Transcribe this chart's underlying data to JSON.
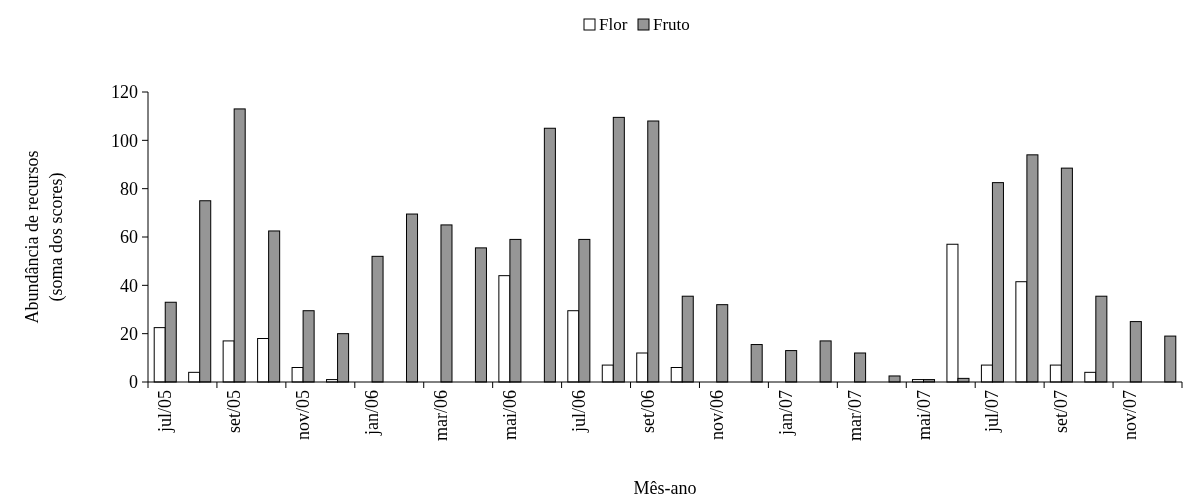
{
  "chart_data": {
    "type": "bar",
    "xlabel": "Mês-ano",
    "ylabel": "Abundância de recursos\n(soma dos scores)",
    "categories": [
      "jul/05",
      null,
      "set/05",
      null,
      "nov/05",
      null,
      "jan/06",
      null,
      "mar/06",
      null,
      "mai/06",
      null,
      "jul/06",
      null,
      "set/06",
      null,
      "nov/06",
      null,
      "jan/07",
      null,
      "mar/07",
      null,
      "mai/07",
      null,
      "jul/07",
      null,
      "set/07",
      null,
      "nov/07",
      null
    ],
    "series": [
      {
        "name": "Flor",
        "color": "#ffffff",
        "values": [
          22.5,
          4,
          17,
          18,
          6,
          1,
          0,
          0,
          0,
          0,
          44,
          0,
          29.5,
          7,
          12,
          6,
          0,
          0,
          0,
          0,
          0,
          0,
          1,
          57,
          7,
          41.5,
          7,
          4,
          0,
          0
        ]
      },
      {
        "name": "Fruto",
        "color": "#969696",
        "values": [
          33,
          75,
          113,
          62.5,
          29.5,
          20,
          52,
          69.5,
          65,
          55.5,
          59,
          105,
          59,
          109.5,
          108,
          35.5,
          32,
          15.5,
          13,
          17,
          12,
          2.5,
          1,
          1.5,
          82.5,
          94,
          88.5,
          35.5,
          25,
          19
        ]
      }
    ],
    "ylim": [
      0,
      120
    ],
    "yticks": [
      0,
      20,
      40,
      60,
      80,
      100,
      120
    ],
    "legend": "top"
  }
}
